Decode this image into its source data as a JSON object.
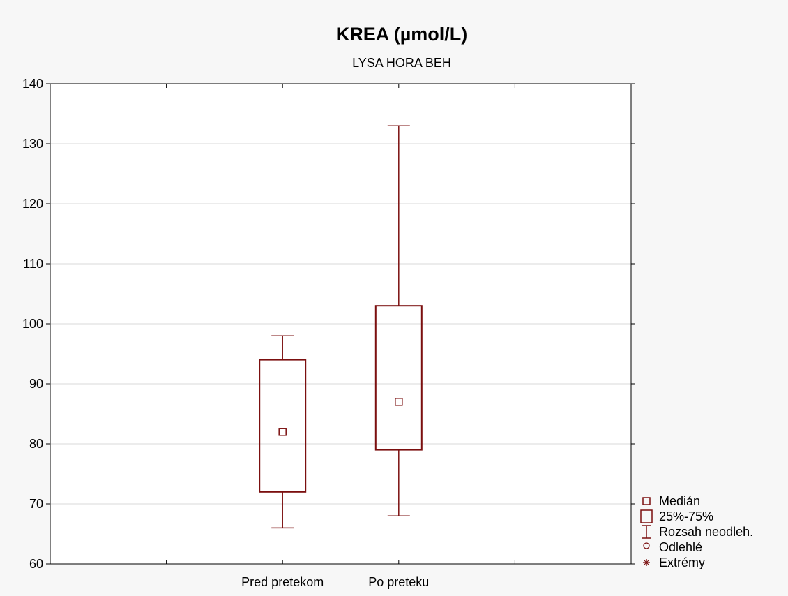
{
  "chart_data": {
    "type": "boxplot",
    "title": "KREA (µmol/L)",
    "subtitle": "LYSA HORA BEH",
    "xlabel": "",
    "ylabel": "",
    "ylim": [
      60,
      140
    ],
    "yticks": [
      60,
      70,
      80,
      90,
      100,
      110,
      120,
      130,
      140
    ],
    "grid": true,
    "categories": [
      "Pred pretekom",
      "Po preteku"
    ],
    "boxes": [
      {
        "category": "Pred pretekom",
        "median": 82,
        "q1": 72,
        "q3": 94,
        "whisker_low": 66,
        "whisker_high": 98
      },
      {
        "category": "Po preteku",
        "median": 87,
        "q1": 79,
        "q3": 103,
        "whisker_low": 68,
        "whisker_high": 133
      }
    ],
    "legend_position": "bottom-right",
    "legend": [
      "Medián",
      "25%-75%",
      "Rozsah neodleh.",
      "Odlehlé",
      "Extrémy"
    ],
    "colors": {
      "box": "#7b0f0f",
      "grid": "#d9d9d9",
      "axis": "#000000",
      "background": "#f7f7f7",
      "plot_background": "#ffffff"
    }
  }
}
